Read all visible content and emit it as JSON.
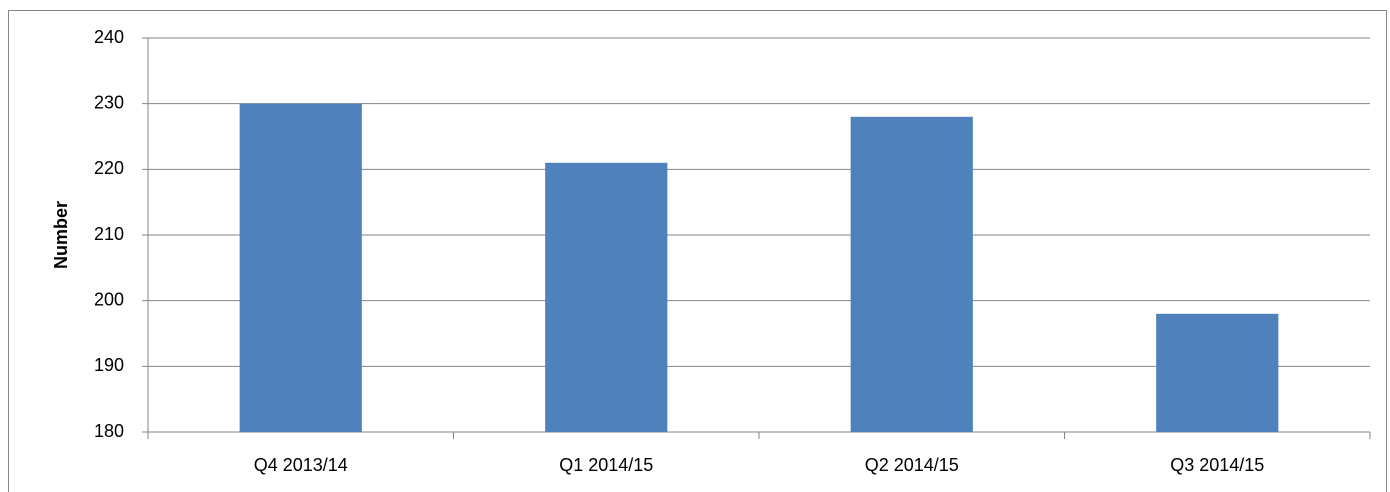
{
  "chart_data": {
    "type": "bar",
    "y_label": "Number",
    "categories": [
      "Q4 2013/14",
      "Q1 2014/15",
      "Q2 2014/15",
      "Q3 2014/15"
    ],
    "values": [
      230,
      221,
      228,
      198
    ],
    "color": "#4f81bd",
    "ylim": [
      180,
      240
    ],
    "yticks": [
      180,
      190,
      200,
      210,
      220,
      230,
      240
    ],
    "grid": true
  }
}
